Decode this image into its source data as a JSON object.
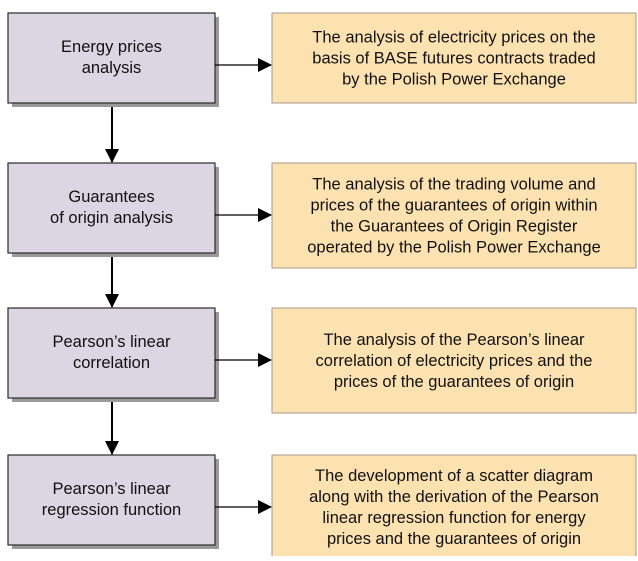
{
  "steps": [
    {
      "label": [
        "Energy prices",
        "analysis"
      ],
      "description": [
        "The analysis of electricity prices on the",
        "basis of BASE futures contracts traded",
        "by the Polish Power Exchange"
      ]
    },
    {
      "label": [
        "Guarantees",
        "of origin analysis"
      ],
      "description": [
        "The analysis of the trading volume and",
        "prices of the guarantees of origin within",
        "the Guarantees of Origin Register",
        "operated by the Polish Power Exchange"
      ]
    },
    {
      "label": [
        "Pearson’s linear",
        "correlation"
      ],
      "description": [
        "The analysis of the Pearson’s linear",
        "correlation of electricity prices and the",
        "prices of the guarantees of origin"
      ]
    },
    {
      "label": [
        "Pearson’s linear",
        "regression function"
      ],
      "description": [
        "The development of a scatter diagram",
        "along with the derivation of the Pearson",
        "linear regression function for energy",
        "prices and the guarantees of origin"
      ]
    }
  ]
}
